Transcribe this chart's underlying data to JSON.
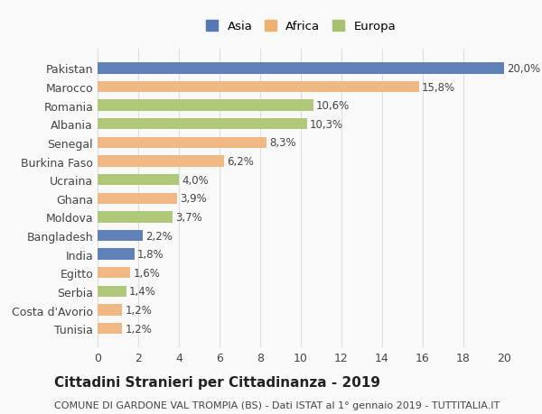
{
  "countries": [
    "Pakistan",
    "Marocco",
    "Romania",
    "Albania",
    "Senegal",
    "Burkina Faso",
    "Ucraina",
    "Ghana",
    "Moldova",
    "Bangladesh",
    "India",
    "Egitto",
    "Serbia",
    "Costa d'Avorio",
    "Tunisia"
  ],
  "values": [
    20.0,
    15.8,
    10.6,
    10.3,
    8.3,
    6.2,
    4.0,
    3.9,
    3.7,
    2.2,
    1.8,
    1.6,
    1.4,
    1.2,
    1.2
  ],
  "labels": [
    "20,0%",
    "15,8%",
    "10,6%",
    "10,3%",
    "8,3%",
    "6,2%",
    "4,0%",
    "3,9%",
    "3,7%",
    "2,2%",
    "1,8%",
    "1,6%",
    "1,4%",
    "1,2%",
    "1,2%"
  ],
  "continents": [
    "Asia",
    "Africa",
    "Europa",
    "Europa",
    "Africa",
    "Africa",
    "Europa",
    "Africa",
    "Europa",
    "Asia",
    "Asia",
    "Africa",
    "Europa",
    "Africa",
    "Africa"
  ],
  "colors": {
    "Asia": "#6080b8",
    "Africa": "#f0b882",
    "Europa": "#b0c87a"
  },
  "legend_colors": {
    "Asia": "#5878b5",
    "Africa": "#f0b070",
    "Europa": "#a8c070"
  },
  "legend_labels": [
    "Asia",
    "Africa",
    "Europa"
  ],
  "title": "Cittadini Stranieri per Cittadinanza - 2019",
  "subtitle": "COMUNE DI GARDONE VAL TROMPIA (BS) - Dati ISTAT al 1° gennaio 2019 - TUTTITALIA.IT",
  "xlim": [
    0,
    20
  ],
  "xticks": [
    0,
    2,
    4,
    6,
    8,
    10,
    12,
    14,
    16,
    18,
    20
  ],
  "background_color": "#f9f9f9",
  "grid_color": "#dddddd",
  "bar_height": 0.6,
  "label_fontsize": 8.5,
  "tick_fontsize": 9,
  "title_fontsize": 11,
  "subtitle_fontsize": 8
}
